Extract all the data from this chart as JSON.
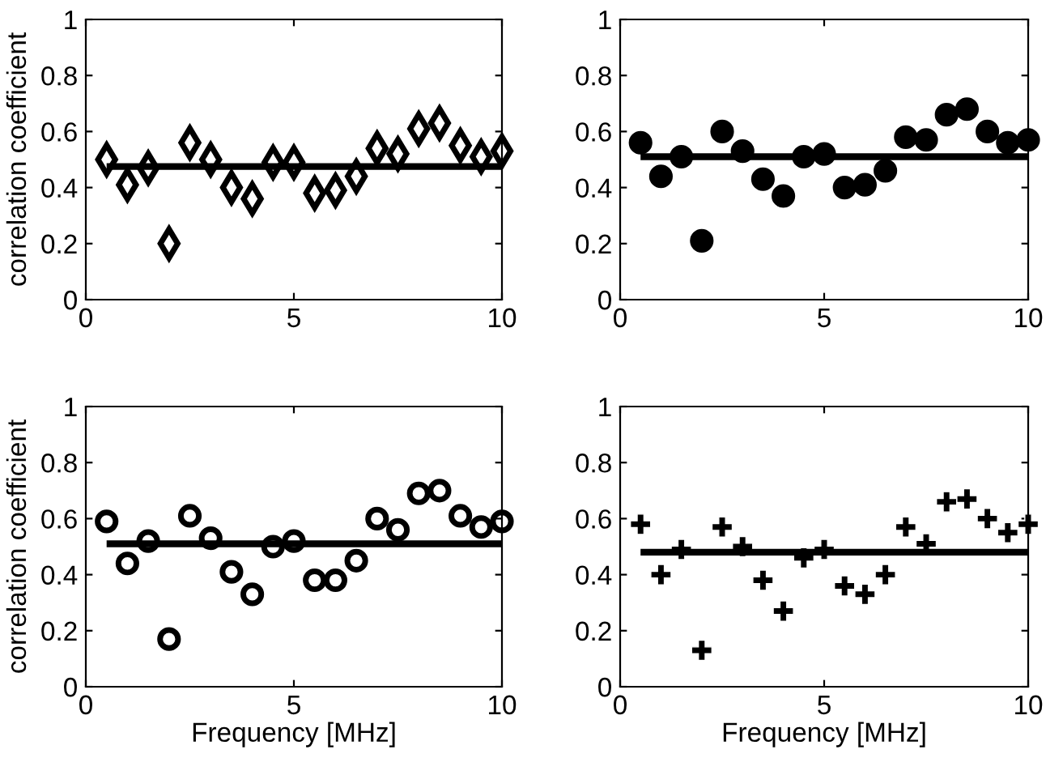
{
  "chart_data": [
    {
      "type": "scatter",
      "ylabel": "correlation coefficient",
      "xlim": [
        0,
        10
      ],
      "ylim": [
        0,
        1
      ],
      "xticks": [
        0,
        5,
        10
      ],
      "yticks": [
        0,
        0.2,
        0.4,
        0.6,
        0.8,
        1
      ],
      "grid": false,
      "legend": false,
      "x": [
        0.5,
        1,
        1.5,
        2,
        2.5,
        3,
        3.5,
        4,
        4.5,
        5,
        5.5,
        6,
        6.5,
        7,
        7.5,
        8,
        8.5,
        9,
        9.5,
        10
      ],
      "series": [
        {
          "marker": "diamond",
          "color": "#000000",
          "values": [
            0.5,
            0.41,
            0.47,
            0.2,
            0.56,
            0.5,
            0.4,
            0.36,
            0.49,
            0.49,
            0.38,
            0.39,
            0.44,
            0.54,
            0.52,
            0.61,
            0.63,
            0.55,
            0.51,
            0.53
          ]
        },
        {
          "type": "line",
          "marker": "none",
          "color": "#000000",
          "values": [
            0.475,
            0.475,
            0.475,
            0.475,
            0.475,
            0.475,
            0.475,
            0.475,
            0.475,
            0.475,
            0.475,
            0.475,
            0.475,
            0.475,
            0.475,
            0.475,
            0.475,
            0.475,
            0.475,
            0.475
          ]
        }
      ]
    },
    {
      "type": "scatter",
      "xlim": [
        0,
        10
      ],
      "ylim": [
        0,
        1
      ],
      "xticks": [
        0,
        5,
        10
      ],
      "yticks": [
        0,
        0.2,
        0.4,
        0.6,
        0.8,
        1
      ],
      "grid": false,
      "legend": false,
      "x": [
        0.5,
        1,
        1.5,
        2,
        2.5,
        3,
        3.5,
        4,
        4.5,
        5,
        5.5,
        6,
        6.5,
        7,
        7.5,
        8,
        8.5,
        9,
        9.5,
        10
      ],
      "series": [
        {
          "marker": "circle",
          "color": "#000000",
          "values": [
            0.56,
            0.44,
            0.51,
            0.21,
            0.6,
            0.53,
            0.43,
            0.37,
            0.51,
            0.52,
            0.4,
            0.41,
            0.46,
            0.58,
            0.57,
            0.66,
            0.68,
            0.6,
            0.56,
            0.57
          ]
        },
        {
          "type": "line",
          "marker": "none",
          "color": "#000000",
          "values": [
            0.51,
            0.51,
            0.51,
            0.51,
            0.51,
            0.51,
            0.51,
            0.51,
            0.51,
            0.51,
            0.51,
            0.51,
            0.51,
            0.51,
            0.51,
            0.51,
            0.51,
            0.51,
            0.51,
            0.51
          ]
        }
      ]
    },
    {
      "type": "scatter",
      "ylabel": "correlation coefficient",
      "xlabel": "Frequency [MHz]",
      "xlim": [
        0,
        10
      ],
      "ylim": [
        0,
        1
      ],
      "xticks": [
        0,
        5,
        10
      ],
      "yticks": [
        0,
        0.2,
        0.4,
        0.6,
        0.8,
        1
      ],
      "grid": false,
      "legend": false,
      "x": [
        0.5,
        1,
        1.5,
        2,
        2.5,
        3,
        3.5,
        4,
        4.5,
        5,
        5.5,
        6,
        6.5,
        7,
        7.5,
        8,
        8.5,
        9,
        9.5,
        10
      ],
      "series": [
        {
          "marker": "open circle",
          "color": "#000000",
          "values": [
            0.59,
            0.44,
            0.52,
            0.17,
            0.61,
            0.53,
            0.41,
            0.33,
            0.5,
            0.52,
            0.38,
            0.38,
            0.45,
            0.6,
            0.56,
            0.69,
            0.7,
            0.61,
            0.57,
            0.59
          ]
        },
        {
          "type": "line",
          "marker": "none",
          "color": "#000000",
          "values": [
            0.51,
            0.51,
            0.51,
            0.51,
            0.51,
            0.51,
            0.51,
            0.51,
            0.51,
            0.51,
            0.51,
            0.51,
            0.51,
            0.51,
            0.51,
            0.51,
            0.51,
            0.51,
            0.51,
            0.51
          ]
        }
      ]
    },
    {
      "type": "scatter",
      "xlabel": "Frequency [MHz]",
      "xlim": [
        0,
        10
      ],
      "ylim": [
        0,
        1
      ],
      "xticks": [
        0,
        5,
        10
      ],
      "yticks": [
        0,
        0.2,
        0.4,
        0.6,
        0.8,
        1
      ],
      "grid": false,
      "legend": false,
      "x": [
        0.5,
        1,
        1.5,
        2,
        2.5,
        3,
        3.5,
        4,
        4.5,
        5,
        5.5,
        6,
        6.5,
        7,
        7.5,
        8,
        8.5,
        9,
        9.5,
        10
      ],
      "series": [
        {
          "marker": "cross",
          "color": "#000000",
          "values": [
            0.58,
            0.4,
            0.49,
            0.13,
            0.57,
            0.5,
            0.38,
            0.27,
            0.46,
            0.49,
            0.36,
            0.33,
            0.4,
            0.57,
            0.51,
            0.66,
            0.67,
            0.6,
            0.55,
            0.58
          ]
        },
        {
          "type": "line",
          "marker": "none",
          "color": "#000000",
          "values": [
            0.48,
            0.48,
            0.48,
            0.48,
            0.48,
            0.48,
            0.48,
            0.48,
            0.48,
            0.48,
            0.48,
            0.48,
            0.48,
            0.48,
            0.48,
            0.48,
            0.48,
            0.48,
            0.48,
            0.48
          ]
        }
      ]
    }
  ]
}
